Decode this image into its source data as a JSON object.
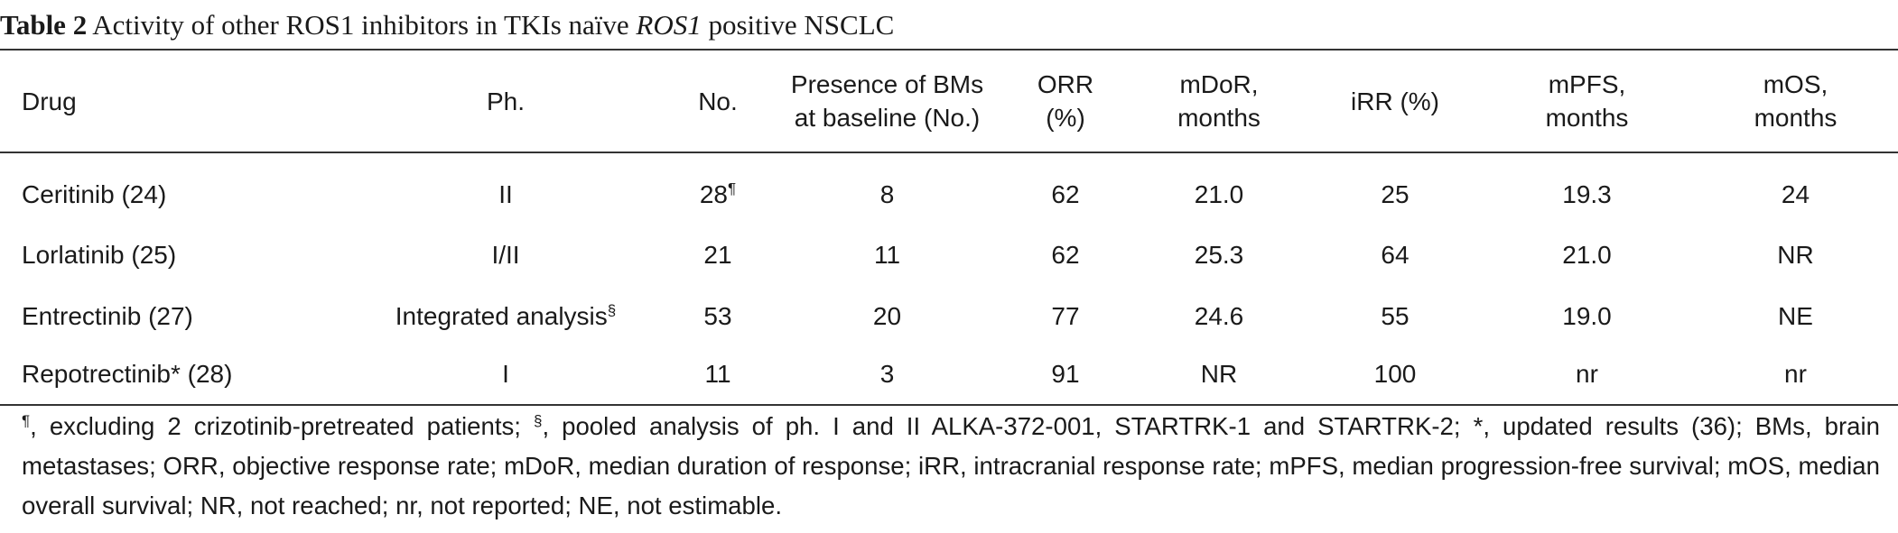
{
  "caption": {
    "label": "Table 2",
    "text_before": "Activity of other ROS1 inhibitors in TKIs naïve",
    "text_italic": "ROS1",
    "text_after": "positive NSCLC"
  },
  "table": {
    "headers": [
      {
        "l1": "Drug",
        "l2": ""
      },
      {
        "l1": "Ph.",
        "l2": ""
      },
      {
        "l1": "No.",
        "l2": ""
      },
      {
        "l1": "Presence of BMs",
        "l2": "at baseline (No.)"
      },
      {
        "l1": "ORR",
        "l2": "(%)"
      },
      {
        "l1": "mDoR,",
        "l2": "months"
      },
      {
        "l1": "iRR (%)",
        "l2": ""
      },
      {
        "l1": "mPFS,",
        "l2": "months"
      },
      {
        "l1": "mOS,",
        "l2": "months"
      }
    ],
    "rows": [
      {
        "drug": "Ceritinib (24)",
        "phase": "II",
        "phase_sup": "",
        "no": "28",
        "no_sup": "¶",
        "bms": "8",
        "orr": "62",
        "mdor": "21.0",
        "irr": "25",
        "mpfs": "19.3",
        "mos": "24"
      },
      {
        "drug": "Lorlatinib (25)",
        "phase": "I/II",
        "phase_sup": "",
        "no": "21",
        "no_sup": "",
        "bms": "11",
        "orr": "62",
        "mdor": "25.3",
        "irr": "64",
        "mpfs": "21.0",
        "mos": "NR"
      },
      {
        "drug": "Entrectinib (27)",
        "phase": "Integrated analysis",
        "phase_sup": "§",
        "no": "53",
        "no_sup": "",
        "bms": "20",
        "orr": "77",
        "mdor": "24.6",
        "irr": "55",
        "mpfs": "19.0",
        "mos": "NE"
      },
      {
        "drug": "Repotrectinib* (28)",
        "phase": "I",
        "phase_sup": "",
        "no": "11",
        "no_sup": "",
        "bms": "3",
        "orr": "91",
        "mdor": "NR",
        "irr": "100",
        "mpfs": "nr",
        "mos": "nr"
      }
    ]
  },
  "footnote": {
    "sym1": "¶",
    "part1": ", excluding 2 crizotinib-pretreated patients; ",
    "sym2": "§",
    "part2": ", pooled analysis of ph. I and II ALKA-372-001, STARTRK-1 and STARTRK-2; *, updated results (36); BMs, brain metastases; ORR, objective response rate; mDoR, median duration of response; iRR, intracranial response rate; mPFS, median progression-free survival; mOS, median overall survival; NR, not reached; nr, not reported; NE, not estimable."
  }
}
